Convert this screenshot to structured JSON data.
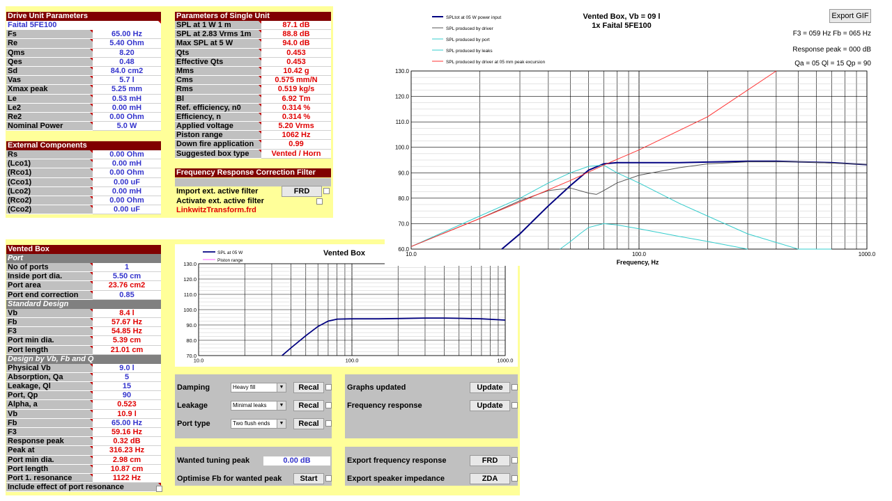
{
  "drive_unit": {
    "title": "Drive Unit Parameters",
    "model": "Faital 5FE100",
    "rows": [
      {
        "label": "Fs",
        "value": "65.00 Hz"
      },
      {
        "label": "Re",
        "value": "5.40 Ohm"
      },
      {
        "label": "Qms",
        "value": "8.20"
      },
      {
        "label": "Qes",
        "value": "0.48"
      },
      {
        "label": "Sd",
        "value": "84.0 cm2"
      },
      {
        "label": "Vas",
        "value": "5.7 l"
      },
      {
        "label": "Xmax peak",
        "value": "5.25 mm"
      },
      {
        "label": "Le",
        "value": "0.53 mH"
      },
      {
        "label": "Le2",
        "value": "0.00 mH"
      },
      {
        "label": "Re2",
        "value": "0.00 Ohm"
      },
      {
        "label": "Nominal Power",
        "value": "5.0 W"
      }
    ]
  },
  "external": {
    "title": "External Components",
    "rows": [
      {
        "label": "Rs",
        "value": "0.00 Ohm"
      },
      {
        "label": "(Lco1)",
        "value": "0.00 mH"
      },
      {
        "label": "(Rco1)",
        "value": "0.00 Ohm"
      },
      {
        "label": "(Cco1)",
        "value": "0.00 uF"
      },
      {
        "label": "(Lco2)",
        "value": "0.00 mH"
      },
      {
        "label": "(Rco2)",
        "value": "0.00 Ohm"
      },
      {
        "label": "(Cco2)",
        "value": "0.00 uF"
      }
    ]
  },
  "single_unit": {
    "title": "Parameters of Single Unit",
    "rows": [
      {
        "label": "SPL at 1 W 1 m",
        "value": "87.1 dB"
      },
      {
        "label": "SPL at 2.83 Vrms 1m",
        "value": "88.8 dB"
      },
      {
        "label": "Max SPL at 5 W",
        "value": "94.0 dB"
      },
      {
        "label": "Qts",
        "value": "0.453"
      },
      {
        "label": "Effective Qts",
        "value": "0.453"
      },
      {
        "label": "Mms",
        "value": "10.42 g"
      },
      {
        "label": "Cms",
        "value": "0.575 mm/N"
      },
      {
        "label": "Rms",
        "value": "0.519 kg/s"
      },
      {
        "label": "Bl",
        "value": "6.92 Tm"
      },
      {
        "label": "Ref. efficiency, n0",
        "value": "0.314 %"
      },
      {
        "label": "Efficiency, n",
        "value": "0.314 %"
      },
      {
        "label": "Applied voltage",
        "value": "5.20 Vrms"
      },
      {
        "label": "Piston range",
        "value": "1062 Hz"
      },
      {
        "label": "Down fire application",
        "value": "0.99"
      },
      {
        "label": "Suggested box type",
        "value": "Vented / Horn"
      }
    ]
  },
  "filter": {
    "title": "Frequency Response Correction Filter",
    "import_label": "Import ext. active filter",
    "import_button": "FRD",
    "activate_label": "Activate ext. active filter",
    "file": "LinkwitzTransform.frd"
  },
  "vented": {
    "title": "Vented Box",
    "port_header": "Port",
    "port_rows": [
      {
        "label": "No of ports",
        "value": "1",
        "color": "blue"
      },
      {
        "label": "Inside port dia.",
        "value": "5.50 cm",
        "color": "blue"
      },
      {
        "label": "Port area",
        "value": "23.76 cm2",
        "color": "red"
      },
      {
        "label": "Port end correction",
        "value": "0.85",
        "color": "blue"
      }
    ],
    "std_header": "Standard Design",
    "std_rows": [
      {
        "label": "Vb",
        "value": "8.4 l",
        "color": "red"
      },
      {
        "label": "Fb",
        "value": "57.67 Hz",
        "color": "red"
      },
      {
        "label": "F3",
        "value": "54.85 Hz",
        "color": "red"
      },
      {
        "label": "Port min dia.",
        "value": "5.39 cm",
        "color": "red"
      },
      {
        "label": "Port length",
        "value": "21.01 cm",
        "color": "red"
      }
    ],
    "design_header": "Design by Vb, Fb and Q",
    "design_rows": [
      {
        "label": "Physical Vb",
        "value": "9.0 l",
        "color": "blue"
      },
      {
        "label": "Absorption, Qa",
        "value": "5",
        "color": "blue"
      },
      {
        "label": "Leakage, Ql",
        "value": "15",
        "color": "blue"
      },
      {
        "label": "Port, Qp",
        "value": "90",
        "color": "blue"
      },
      {
        "label": "Alpha, a",
        "value": "0.523",
        "color": "red"
      },
      {
        "label": "Vb",
        "value": "10.9 l",
        "color": "red"
      },
      {
        "label": "Fb",
        "value": "65.00 Hz",
        "color": "blue"
      },
      {
        "label": "F3",
        "value": "59.16 Hz",
        "color": "red"
      },
      {
        "label": "Response peak",
        "value": "0.32 dB",
        "color": "red"
      },
      {
        "label": "Peak at",
        "value": "316.23 Hz",
        "color": "red"
      },
      {
        "label": "Port min dia.",
        "value": "2.98 cm",
        "color": "red"
      },
      {
        "label": "Port length",
        "value": "10.87 cm",
        "color": "red"
      },
      {
        "label": "Port 1. resonance",
        "value": "1122 Hz",
        "color": "red"
      }
    ],
    "include_label": "Include effect of port resonance"
  },
  "controls": {
    "damping_label": "Damping",
    "damping_value": "Heavy fill",
    "leakage_label": "Leakage",
    "leakage_value": "Minimal leaks",
    "port_type_label": "Port type",
    "port_type_value": "Two flush ends",
    "recal": "Recal",
    "graphs_updated": "Graphs updated",
    "freq_response": "Frequency response",
    "update": "Update",
    "wanted_peak_label": "Wanted tuning peak",
    "wanted_peak_value": "0.00 dB",
    "optimise_label": "Optimise Fb for wanted peak",
    "start": "Start",
    "export_fr_label": "Export frequency response",
    "export_fr_button": "FRD",
    "export_imp_label": "Export speaker impedance",
    "export_imp_button": "ZDA"
  },
  "big_chart": {
    "export_button": "Export GIF",
    "title1": "Vented Box, Vb = 09 l",
    "title2": "1x Faital 5FE100",
    "info1": "F3 = 059 Hz  Fb = 065 Hz",
    "info2": "Response peak = 000 dB",
    "info3": "Qa = 05  Ql = 15  Qp = 90",
    "legend": [
      {
        "label": "SPLtot at 05 W power input",
        "color": "#000080"
      },
      {
        "label": "SPL produced by driver",
        "color": "#555555"
      },
      {
        "label": "SPL produced by port",
        "color": "#33cccc"
      },
      {
        "label": "SPL produced by leaks",
        "color": "#33cccc"
      },
      {
        "label": "SPL produced by driver at 05 mm peak excursion",
        "color": "#ff3333"
      }
    ],
    "xlabel": "Frequency, Hz",
    "x_ticks": [
      "10.0",
      "100.0",
      "1000.0"
    ],
    "y_ticks": [
      "60.0",
      "70.0",
      "80.0",
      "90.0",
      "100.0",
      "110.0",
      "120.0",
      "130.0"
    ]
  },
  "small_chart": {
    "title": "Vented Box",
    "legend": [
      {
        "label": "SPL at 05 W",
        "color": "#000080"
      },
      {
        "label": "Piston range",
        "color": "#ff66ff"
      }
    ],
    "x_ticks": [
      "10.0",
      "100.0",
      "1000.0"
    ],
    "y_ticks": [
      "70.0",
      "80.0",
      "90.0",
      "100.0",
      "110.0",
      "120.0",
      "130.0"
    ]
  },
  "chart_data": [
    {
      "type": "line",
      "title": "Vented Box, Vb = 09 l",
      "xlabel": "Frequency, Hz",
      "xscale": "log",
      "xlim": [
        10,
        1000
      ],
      "ylim": [
        60,
        130
      ],
      "series": [
        {
          "name": "SPLtot at 05 W power input",
          "x": [
            25,
            30,
            40,
            50,
            60,
            70,
            80,
            100,
            150,
            200,
            300,
            400,
            500,
            700,
            1000
          ],
          "y": [
            60,
            66,
            77,
            85,
            91,
            93.5,
            94,
            94,
            94,
            94.2,
            94.5,
            94.5,
            94.3,
            94,
            93.2
          ]
        },
        {
          "name": "SPL produced by driver",
          "x": [
            10,
            20,
            30,
            40,
            50,
            60,
            65,
            70,
            80,
            100,
            150,
            200,
            300,
            500,
            1000
          ],
          "y": [
            61,
            72,
            79,
            83,
            84,
            82,
            81.5,
            83,
            86,
            89,
            92,
            93.5,
            94.3,
            94.3,
            93.3
          ]
        },
        {
          "name": "SPL produced by port",
          "x": [
            10,
            20,
            30,
            40,
            50,
            60,
            70,
            80,
            100,
            150,
            200,
            300,
            500,
            700
          ],
          "y": [
            61,
            73,
            80,
            86,
            90,
            92.5,
            93,
            90,
            86,
            78,
            73,
            66,
            60,
            60
          ]
        },
        {
          "name": "SPL produced by leaks",
          "x": [
            45,
            50,
            55,
            60,
            70,
            80,
            100,
            150,
            200,
            300
          ],
          "y": [
            60,
            63,
            66,
            68.5,
            70,
            69.5,
            68,
            65,
            63,
            60
          ]
        },
        {
          "name": "SPL produced by driver at 05 mm peak excursion",
          "x": [
            10,
            20,
            30,
            50,
            70,
            100,
            200,
            400
          ],
          "y": [
            61,
            72,
            78.5,
            87,
            93,
            99,
            112,
            130
          ]
        }
      ]
    },
    {
      "type": "line",
      "title": "Vented Box",
      "xscale": "log",
      "xlim": [
        10,
        1000
      ],
      "ylim": [
        70,
        130
      ],
      "series": [
        {
          "name": "SPL at 05 W",
          "x": [
            35,
            40,
            50,
            60,
            70,
            80,
            100,
            150,
            200,
            300,
            400,
            500,
            700,
            1000
          ],
          "y": [
            70,
            75,
            83,
            89,
            92.5,
            93.8,
            94,
            94,
            94.2,
            94.5,
            94.5,
            94.3,
            94,
            93.2
          ]
        }
      ]
    }
  ]
}
